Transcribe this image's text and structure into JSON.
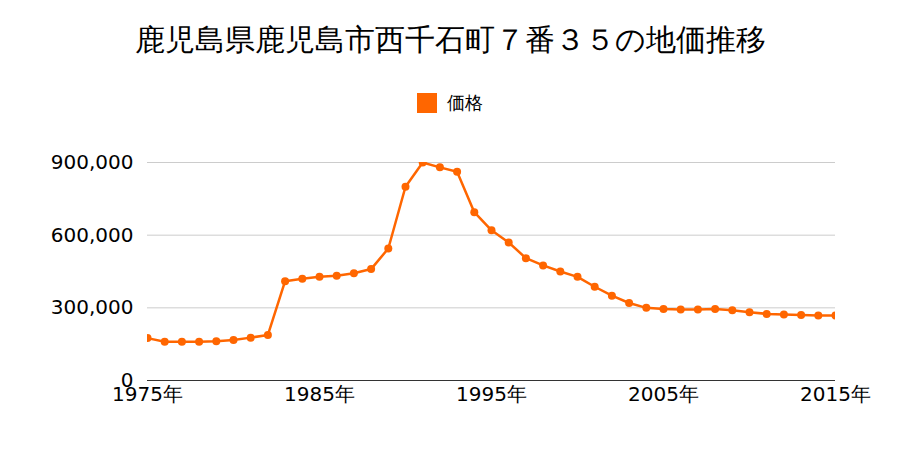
{
  "chart_data": {
    "type": "line",
    "title": "鹿児島県鹿児島市西千石町７番３５の地価推移",
    "x": [
      1975,
      1976,
      1977,
      1978,
      1979,
      1980,
      1981,
      1982,
      1983,
      1984,
      1985,
      1986,
      1987,
      1988,
      1989,
      1990,
      1991,
      1992,
      1993,
      1994,
      1995,
      1996,
      1997,
      1998,
      1999,
      2000,
      2001,
      2002,
      2003,
      2004,
      2005,
      2006,
      2007,
      2008,
      2009,
      2010,
      2011,
      2012,
      2013,
      2014,
      2015
    ],
    "series": [
      {
        "name": "価格",
        "color": "#ff6600",
        "marker": "circle",
        "line_style": "solid",
        "values": [
          175000,
          160000,
          160000,
          160000,
          162000,
          167000,
          177000,
          188000,
          410000,
          420000,
          428000,
          432000,
          443000,
          460000,
          545000,
          800000,
          900000,
          880000,
          862000,
          695000,
          620000,
          570000,
          505000,
          475000,
          450000,
          428000,
          387000,
          350000,
          320000,
          300000,
          295000,
          293000,
          293000,
          295000,
          290000,
          282000,
          275000,
          272000,
          270000,
          268000,
          268000
        ]
      }
    ],
    "xlim": [
      1975,
      2015
    ],
    "xticks": [
      {
        "value": 1975,
        "label": "1975年"
      },
      {
        "value": 1985,
        "label": "1985年"
      },
      {
        "value": 1995,
        "label": "1995年"
      },
      {
        "value": 2005,
        "label": "2005年"
      },
      {
        "value": 2015,
        "label": "2015年"
      }
    ],
    "ylim": [
      0,
      900000
    ],
    "yticks": [
      0,
      {
        "value": 300000,
        "label": "300,000"
      },
      {
        "value": 600000,
        "label": "600,000"
      },
      {
        "value": 900000,
        "label": "900,000"
      }
    ],
    "grid": true,
    "legend": "top"
  }
}
